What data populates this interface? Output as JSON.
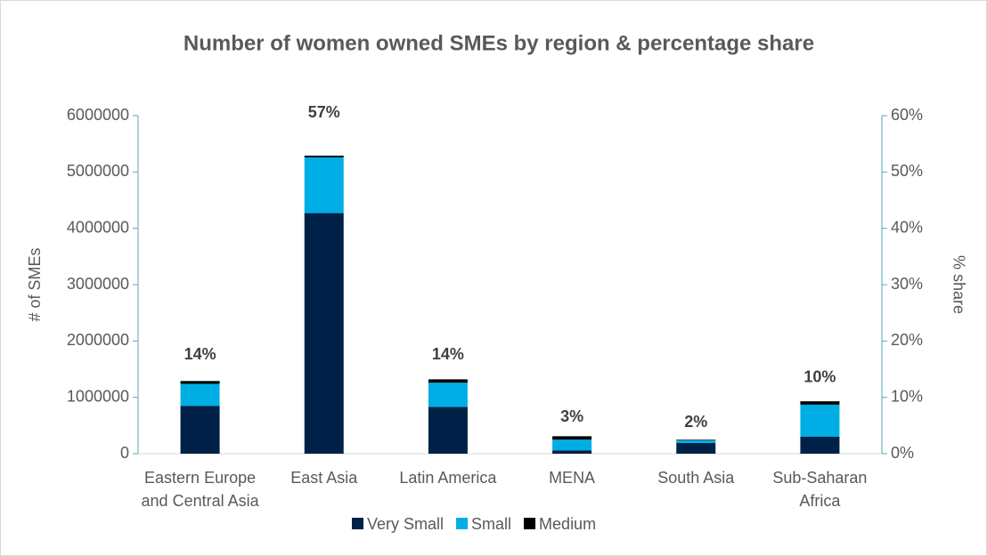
{
  "chart_data": {
    "type": "stacked_bar",
    "title": "Number of women owned SMEs by region & percentage share",
    "categories": [
      "Eastern Europe and Central Asia",
      "East Asia",
      "Latin America",
      "MENA",
      "South Asia",
      "Sub-Saharan Africa"
    ],
    "series": [
      {
        "name": "Very Small",
        "color": "#002147",
        "values": [
          850000,
          4270000,
          830000,
          60000,
          190000,
          300000
        ]
      },
      {
        "name": "Small",
        "color": "#00aee6",
        "values": [
          390000,
          990000,
          430000,
          190000,
          50000,
          570000
        ]
      },
      {
        "name": "Medium",
        "color": "#000000",
        "values": [
          50000,
          30000,
          60000,
          60000,
          10000,
          60000
        ]
      }
    ],
    "share": {
      "axis": "y2",
      "values": [
        14,
        57,
        14,
        3,
        2,
        10
      ],
      "value_labels": [
        "14%",
        "57%",
        "14%",
        "3%",
        "2%",
        "10%"
      ]
    },
    "ylabel": "# of SMEs",
    "y2label": "% share",
    "ylim": [
      0,
      6000000
    ],
    "yticks": [
      0,
      1000000,
      2000000,
      3000000,
      4000000,
      5000000,
      6000000
    ],
    "y2lim": [
      0,
      60
    ],
    "y2ticks": [
      {
        "value": 0,
        "label": "0%"
      },
      {
        "value": 10,
        "label": "10%"
      },
      {
        "value": 20,
        "label": "20%"
      },
      {
        "value": 30,
        "label": "30%"
      },
      {
        "value": 40,
        "label": "40%"
      },
      {
        "value": 50,
        "label": "50%"
      },
      {
        "value": 60,
        "label": "60%"
      }
    ],
    "legend": "bottom",
    "grid": false
  }
}
